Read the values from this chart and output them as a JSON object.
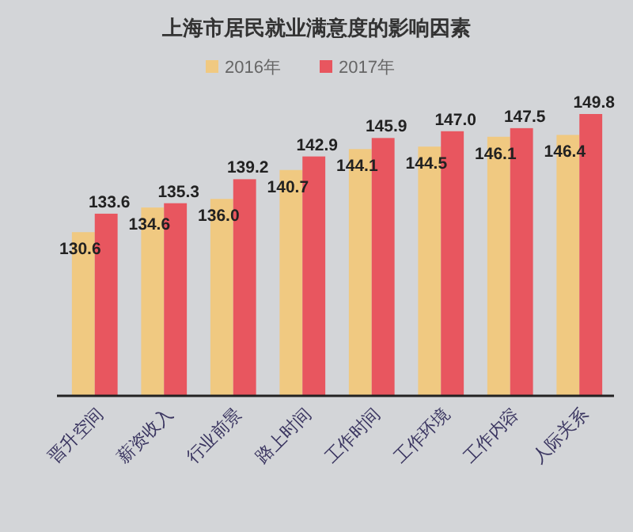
{
  "chart_data": {
    "type": "bar",
    "title": "上海市居民就业满意度的影响因素",
    "categories": [
      "晋升空间",
      "薪资收入",
      "行业前景",
      "路上时间",
      "工作时间",
      "工作环境",
      "工作内容",
      "人际关系"
    ],
    "series": [
      {
        "name": "2016年",
        "color": "#f0c981",
        "values": [
          130.6,
          134.6,
          136.0,
          140.7,
          144.1,
          144.5,
          146.1,
          146.4
        ],
        "value_labels": [
          "130.6",
          "134.6",
          "136.0",
          "140.7",
          "144.1",
          "144.5",
          "146.1",
          "146.4"
        ]
      },
      {
        "name": "2017年",
        "color": "#e8565f",
        "values": [
          133.6,
          135.3,
          139.2,
          142.9,
          145.9,
          147.0,
          147.5,
          149.8
        ],
        "value_labels": [
          "133.6",
          "135.3",
          "139.2",
          "142.9",
          "145.9",
          "147.0",
          "147.5",
          "149.8"
        ]
      }
    ],
    "ylim": [
      104,
      149.8
    ],
    "tick_labels": "x",
    "legend": "top"
  }
}
